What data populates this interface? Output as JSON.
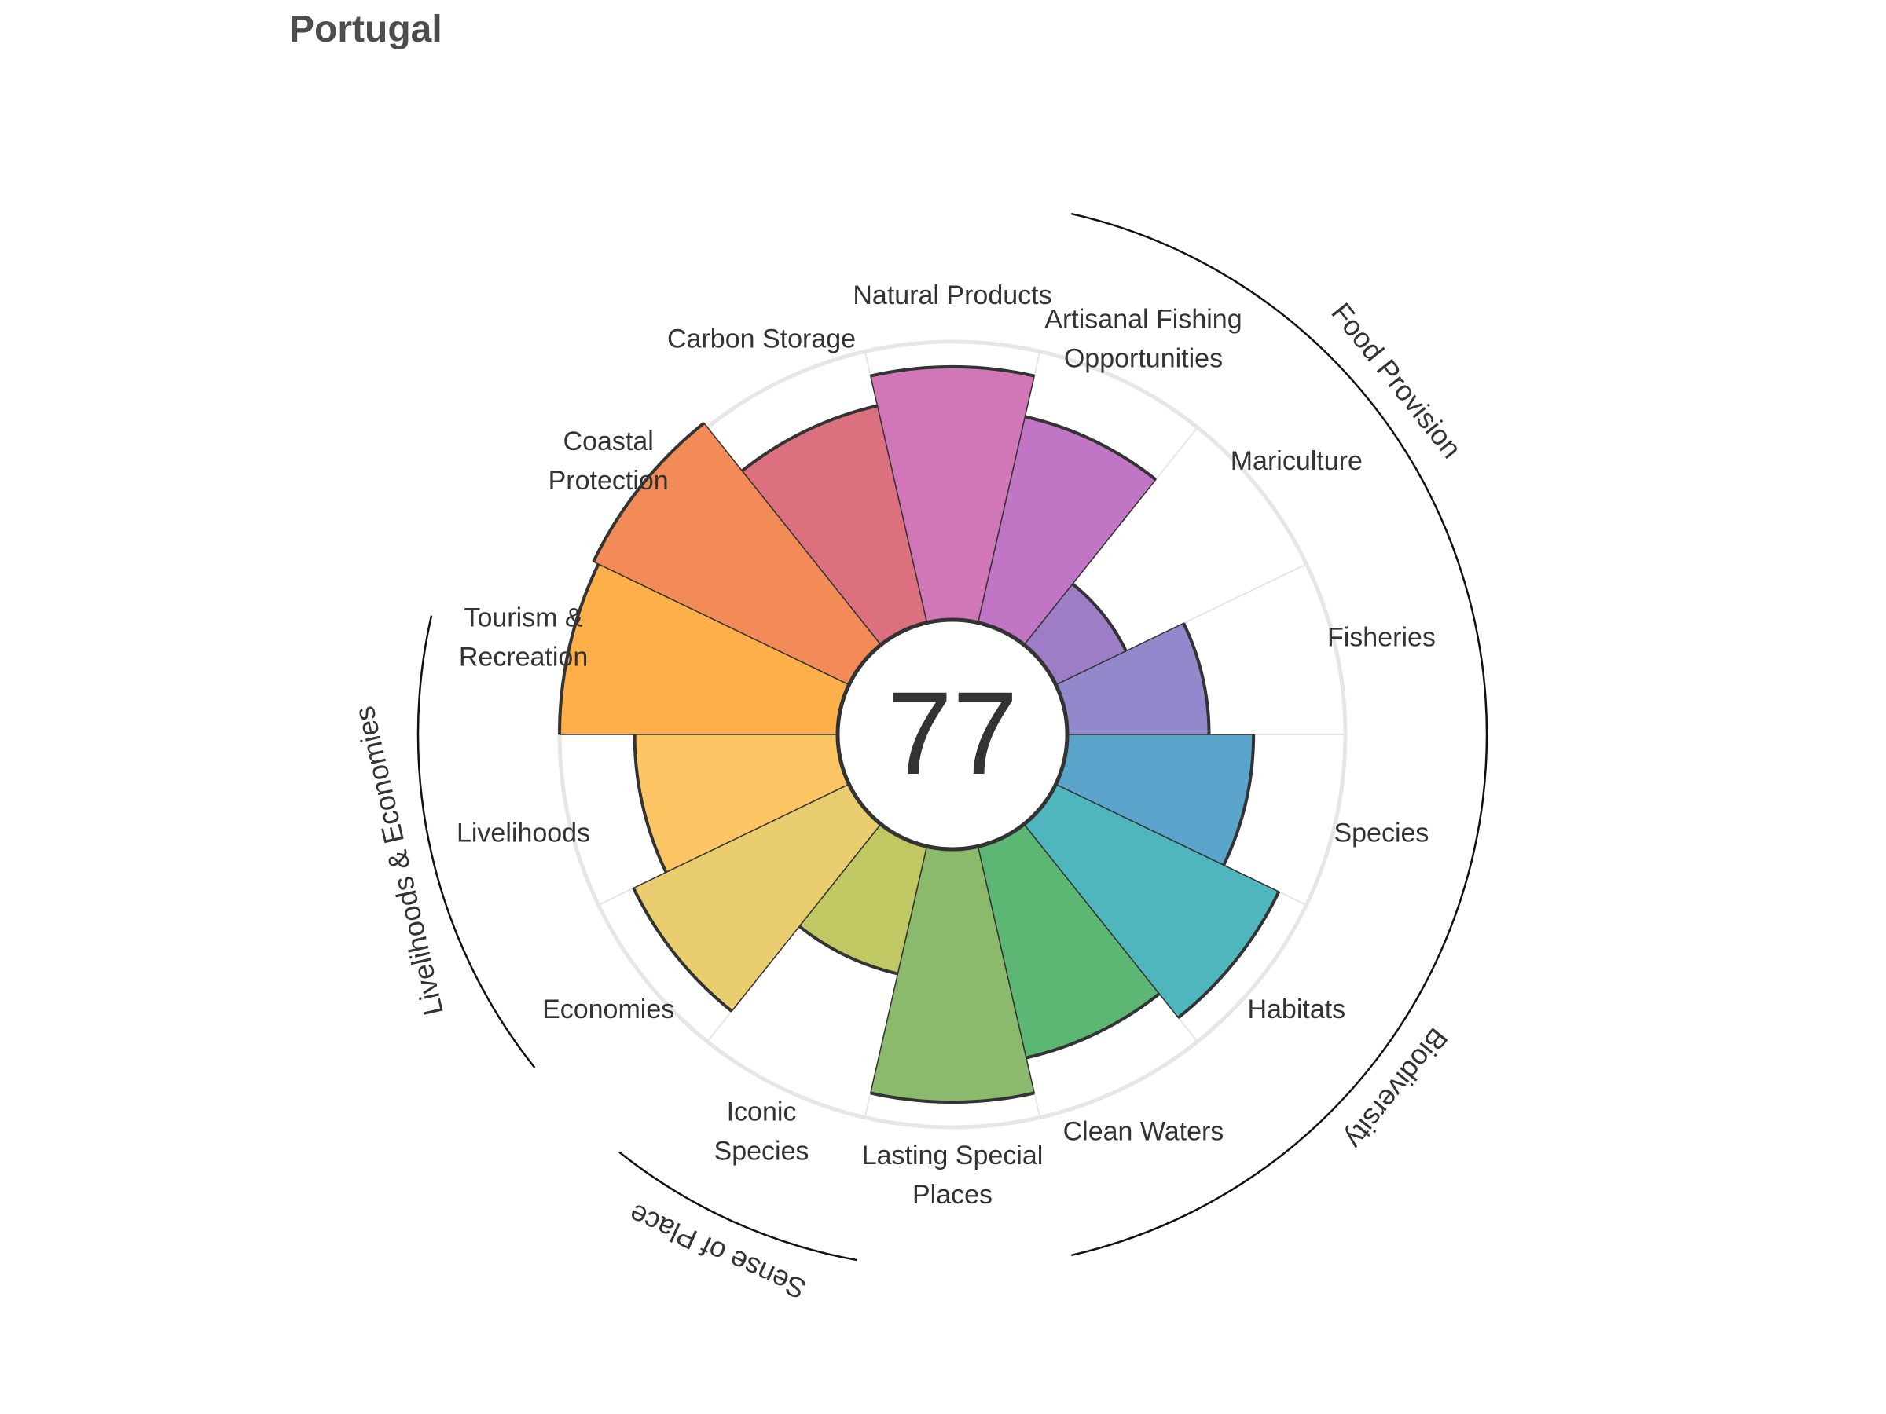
{
  "title": "Portugal",
  "chart_data": {
    "type": "flower",
    "title": "Portugal",
    "overall_score": "77",
    "petals": [
      {
        "label": "Fisheries",
        "score": 51,
        "color": "#9189cc"
      },
      {
        "label": "Mariculture",
        "score": 28,
        "color": "#9d7dc6"
      },
      {
        "label": "Artisanal Fishing Opportunities",
        "score": 76,
        "color": "#c175c5"
      },
      {
        "label": "Natural Products",
        "score": 91,
        "color": "#d177b8"
      },
      {
        "label": "Carbon Storage",
        "score": 80,
        "color": "#dc707f"
      },
      {
        "label": "Coastal Protection",
        "score": 102,
        "color": "#f28b58"
      },
      {
        "label": "Tourism & Recreation",
        "score": 100,
        "color": "#fdaf4a"
      },
      {
        "label": "Livelihoods",
        "score": 73,
        "color": "#fdc563"
      },
      {
        "label": "Economies",
        "score": 86,
        "color": "#e9cd6e"
      },
      {
        "label": "Iconic Species",
        "score": 47,
        "color": "#bfc862"
      },
      {
        "label": "Lasting Special Places",
        "score": 91,
        "color": "#8cba6d"
      },
      {
        "label": "Clean Waters",
        "score": 78,
        "color": "#5cb774"
      },
      {
        "label": "Habitats",
        "score": 89,
        "color": "#4fb6bd"
      },
      {
        "label": "Species",
        "score": 67,
        "color": "#5ba4cb"
      }
    ],
    "groups": [
      {
        "label": "Food Provision"
      },
      {
        "label": "Biodiversity"
      },
      {
        "label": "Sense of Place"
      },
      {
        "label": "Livelihoods & Economies"
      }
    ],
    "radial_range": [
      0,
      100
    ]
  }
}
